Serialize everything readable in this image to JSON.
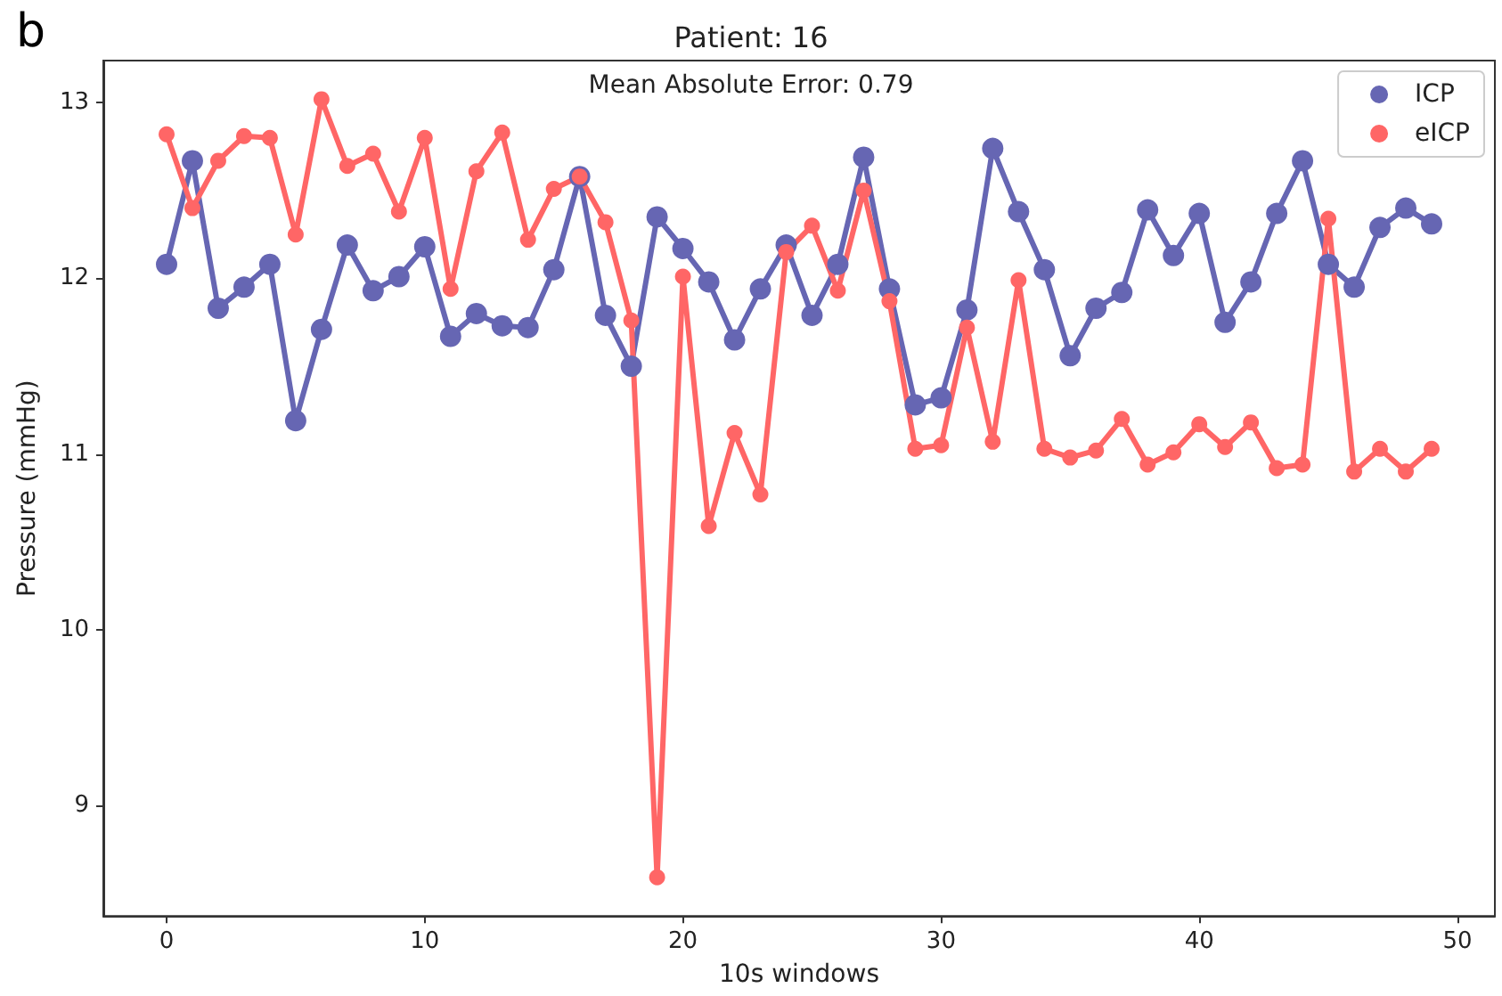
{
  "chart_data": {
    "type": "line",
    "title": "Patient: 16",
    "subtitle": "Mean Absolute Error: 0.79",
    "xlabel": "10s windows",
    "ylabel": "Pressure (mmHg)",
    "annotations": [
      "b"
    ],
    "x": [
      0,
      1,
      2,
      3,
      4,
      5,
      6,
      7,
      8,
      9,
      10,
      11,
      12,
      13,
      14,
      15,
      16,
      17,
      18,
      19,
      20,
      21,
      22,
      23,
      24,
      25,
      26,
      27,
      28,
      29,
      30,
      31,
      32,
      33,
      34,
      35,
      36,
      37,
      38,
      39,
      40,
      41,
      42,
      43,
      44,
      45,
      46,
      47,
      48,
      49
    ],
    "series": [
      {
        "name": "ICP",
        "color": "#6666b3",
        "values": [
          12.08,
          12.67,
          11.83,
          11.95,
          12.08,
          11.19,
          11.71,
          12.19,
          11.93,
          12.01,
          12.18,
          11.67,
          11.8,
          11.73,
          11.72,
          12.05,
          12.58,
          11.79,
          11.5,
          12.35,
          12.17,
          11.98,
          11.65,
          11.94,
          12.19,
          11.79,
          12.08,
          12.69,
          11.94,
          11.28,
          11.32,
          11.82,
          12.74,
          12.38,
          12.05,
          11.56,
          11.83,
          11.92,
          12.39,
          12.13,
          12.37,
          11.75,
          11.98,
          12.37,
          12.67,
          12.08,
          11.95,
          12.29,
          12.4,
          12.31
        ]
      },
      {
        "name": "eICP",
        "color": "#ff6666",
        "values": [
          12.82,
          12.4,
          12.67,
          12.81,
          12.8,
          12.25,
          13.02,
          12.64,
          12.71,
          12.38,
          12.8,
          11.94,
          12.61,
          12.83,
          12.22,
          12.51,
          12.58,
          12.32,
          11.76,
          8.59,
          12.01,
          10.59,
          11.12,
          10.77,
          12.15,
          12.3,
          11.93,
          12.5,
          11.87,
          11.03,
          11.05,
          11.72,
          11.07,
          11.99,
          11.03,
          10.98,
          11.02,
          11.2,
          10.94,
          11.01,
          11.17,
          11.04,
          11.18,
          10.92,
          10.94,
          12.34,
          10.9,
          11.03,
          10.9,
          11.03
        ]
      }
    ],
    "xlim": [
      -2.45,
      51.45
    ],
    "ylim": [
      8.37,
      13.24
    ],
    "xticks": [
      0,
      10,
      20,
      30,
      40,
      50
    ],
    "yticks": [
      9,
      10,
      11,
      12,
      13
    ],
    "grid": false,
    "legend": "top right",
    "marker": "circle",
    "line_style": "solid"
  }
}
